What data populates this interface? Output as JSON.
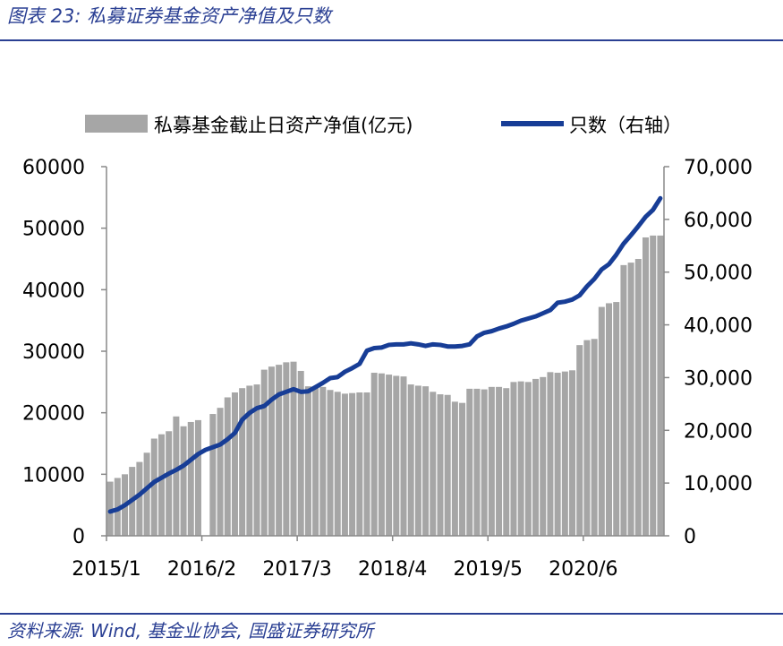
{
  "figure_title": "图表 23:  私募证券基金资产净值及只数",
  "source": "资料来源:  Wind,  基金业协会,  国盛证券研究所",
  "colors": {
    "bar": "#a6a6a6",
    "line": "#173d96",
    "title": "#2a3f93"
  },
  "chart_data": {
    "type": "bar+line",
    "legend": [
      {
        "label": "私募基金截止日资产净值(亿元)",
        "kind": "bar"
      },
      {
        "label": "只数（右轴）",
        "kind": "line"
      }
    ],
    "legend_position": "top",
    "x_tick_labels": [
      "2015/1",
      "2016/2",
      "2017/3",
      "2018/4",
      "2019/5",
      "2020/6"
    ],
    "y_left": {
      "ylim": [
        0,
        60000
      ],
      "ticks": [
        "0",
        "10000",
        "20000",
        "30000",
        "40000",
        "50000",
        "60000"
      ]
    },
    "y_right": {
      "ylim": [
        0,
        70000
      ],
      "ticks": [
        "0",
        "10,000",
        "20,000",
        "30,000",
        "40,000",
        "50,000",
        "60,000",
        "70,000"
      ]
    },
    "grid": false,
    "series": [
      {
        "name": "私募基金截止日资产净值(亿元)",
        "axis": "left",
        "type": "bar",
        "values": [
          8800,
          9400,
          10000,
          11200,
          12000,
          13500,
          15800,
          16500,
          17000,
          19400,
          17800,
          18500,
          18800,
          0,
          19800,
          20800,
          22500,
          23300,
          24000,
          24400,
          24600,
          27000,
          27500,
          27800,
          28200,
          28300,
          26800,
          24300,
          24000,
          24200,
          23700,
          23400,
          23100,
          23200,
          23300,
          23300,
          26500,
          26400,
          26200,
          26000,
          25900,
          24600,
          24400,
          24300,
          23400,
          23000,
          22900,
          21800,
          21600,
          23900,
          23900,
          23800,
          24200,
          24200,
          24000,
          25000,
          25100,
          25000,
          25500,
          25800,
          26600,
          26500,
          26700,
          26900,
          31000,
          31800,
          32000,
          37200,
          37800,
          38000,
          44000,
          44400,
          45000,
          48500,
          48800,
          48800
        ]
      },
      {
        "name": "只数（右轴）",
        "axis": "right",
        "type": "line",
        "values": [
          4600,
          5000,
          5800,
          6800,
          7800,
          9000,
          10200,
          11000,
          11800,
          12500,
          13300,
          14400,
          15500,
          16300,
          16800,
          17300,
          18300,
          19500,
          22000,
          23300,
          24200,
          24600,
          25800,
          26800,
          27300,
          27800,
          27300,
          27400,
          28200,
          29000,
          29900,
          30100,
          31100,
          31800,
          32600,
          35100,
          35600,
          35700,
          36200,
          36300,
          36300,
          36500,
          36300,
          36000,
          36300,
          36200,
          35900,
          35900,
          36000,
          36300,
          37800,
          38500,
          38800,
          39300,
          39700,
          40200,
          40800,
          41200,
          41600,
          42200,
          42800,
          44200,
          44400,
          44800,
          45600,
          47300,
          48700,
          50500,
          51500,
          53300,
          55400,
          57000,
          58700,
          60500,
          61800,
          64000
        ]
      }
    ]
  }
}
